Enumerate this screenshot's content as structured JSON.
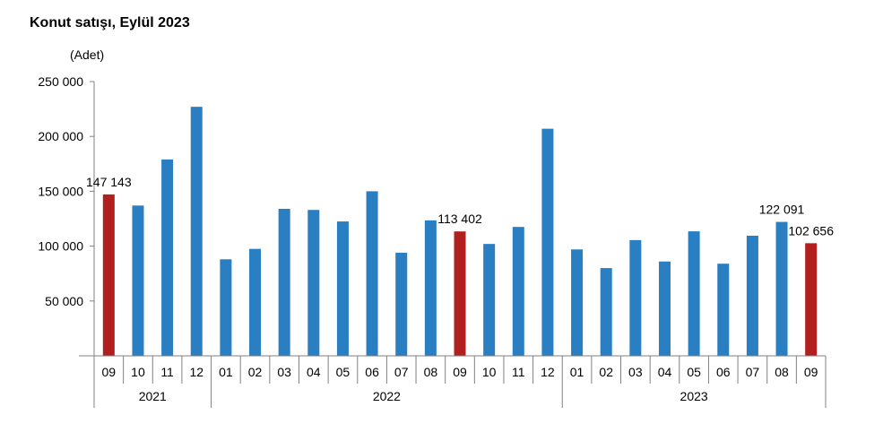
{
  "title": "Konut satışı, Eylül 2023",
  "unit_label": "(Adet)",
  "colors": {
    "normal": "#2a7ec2",
    "highlight": "#b21f1f"
  },
  "chart_data": {
    "type": "bar",
    "title": "Konut satışı, Eylül 2023",
    "ylabel": "(Adet)",
    "ylim": [
      0,
      250000
    ],
    "y_ticks": [
      {
        "value": 50000,
        "label": "50 000"
      },
      {
        "value": 100000,
        "label": "100 000"
      },
      {
        "value": 150000,
        "label": "150 000"
      },
      {
        "value": 200000,
        "label": "200 000"
      },
      {
        "value": 250000,
        "label": "250 000"
      }
    ],
    "grid": false,
    "legend": "none",
    "categories": [
      "09",
      "10",
      "11",
      "12",
      "01",
      "02",
      "03",
      "04",
      "05",
      "06",
      "07",
      "08",
      "09",
      "10",
      "11",
      "12",
      "01",
      "02",
      "03",
      "04",
      "05",
      "06",
      "07",
      "08",
      "09"
    ],
    "years": [
      {
        "label": "2021",
        "count": 4
      },
      {
        "label": "2022",
        "count": 12
      },
      {
        "label": "2023",
        "count": 9
      }
    ],
    "values": [
      147143,
      137000,
      179000,
      227000,
      88000,
      97500,
      134000,
      133000,
      122500,
      150000,
      94000,
      123500,
      113402,
      102000,
      117500,
      207000,
      97000,
      80000,
      105500,
      86000,
      113500,
      84000,
      109500,
      122091,
      102656
    ],
    "highlighted": [
      0,
      12,
      24
    ],
    "data_labels": [
      {
        "index": 0,
        "text": "147 143"
      },
      {
        "index": 12,
        "text": "113 402"
      },
      {
        "index": 23,
        "text": "122 091"
      },
      {
        "index": 24,
        "text": "102 656"
      }
    ]
  }
}
